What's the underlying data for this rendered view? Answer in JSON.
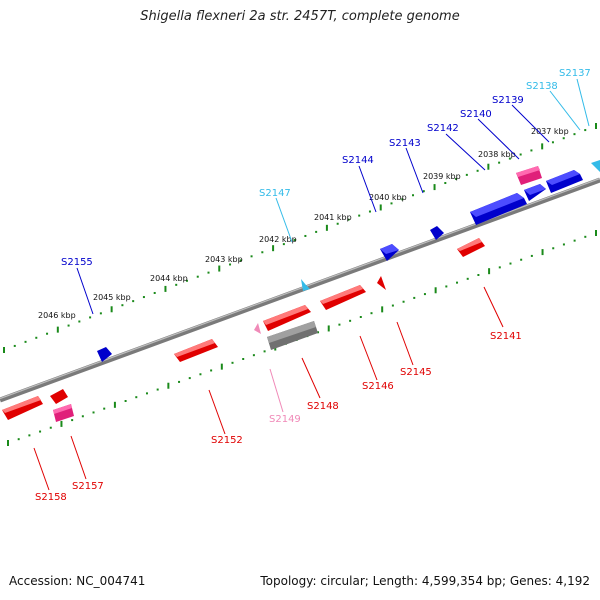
{
  "title": "Shigella flexneri 2a str. 2457T, complete genome",
  "footer": {
    "accession": "Accession: NC_004741",
    "summary": "Topology: circular; Length: 4,599,354 bp; Genes: 4,192"
  },
  "tick_labels": [
    "2037 kbp",
    "2038 kbp",
    "2039 kbp",
    "2040 kbp",
    "2041 kbp",
    "2042 kbp",
    "2043 kbp",
    "2044 kbp",
    "2045 kbp",
    "2046 kbp"
  ],
  "colors": {
    "forward_gene": "#0000cc",
    "reverse_gene": "#e00000",
    "pseudo_pink": "#e0207a",
    "light_blue": "#33bbe8",
    "light_pink": "#f08ab8",
    "backbone": "#808080",
    "ruler": "#1a8a1a"
  },
  "gene_labels": {
    "s2137": "S2137",
    "s2138": "S2138",
    "s2139": "S2139",
    "s2140": "S2140",
    "s2141": "S2141",
    "s2142": "S2142",
    "s2143": "S2143",
    "s2144": "S2144",
    "s2145": "S2145",
    "s2146": "S2146",
    "s2147": "S2147",
    "s2148": "S2148",
    "s2149": "S2149",
    "s2152": "S2152",
    "s2155": "S2155",
    "s2157": "S2157",
    "s2158": "S2158"
  }
}
